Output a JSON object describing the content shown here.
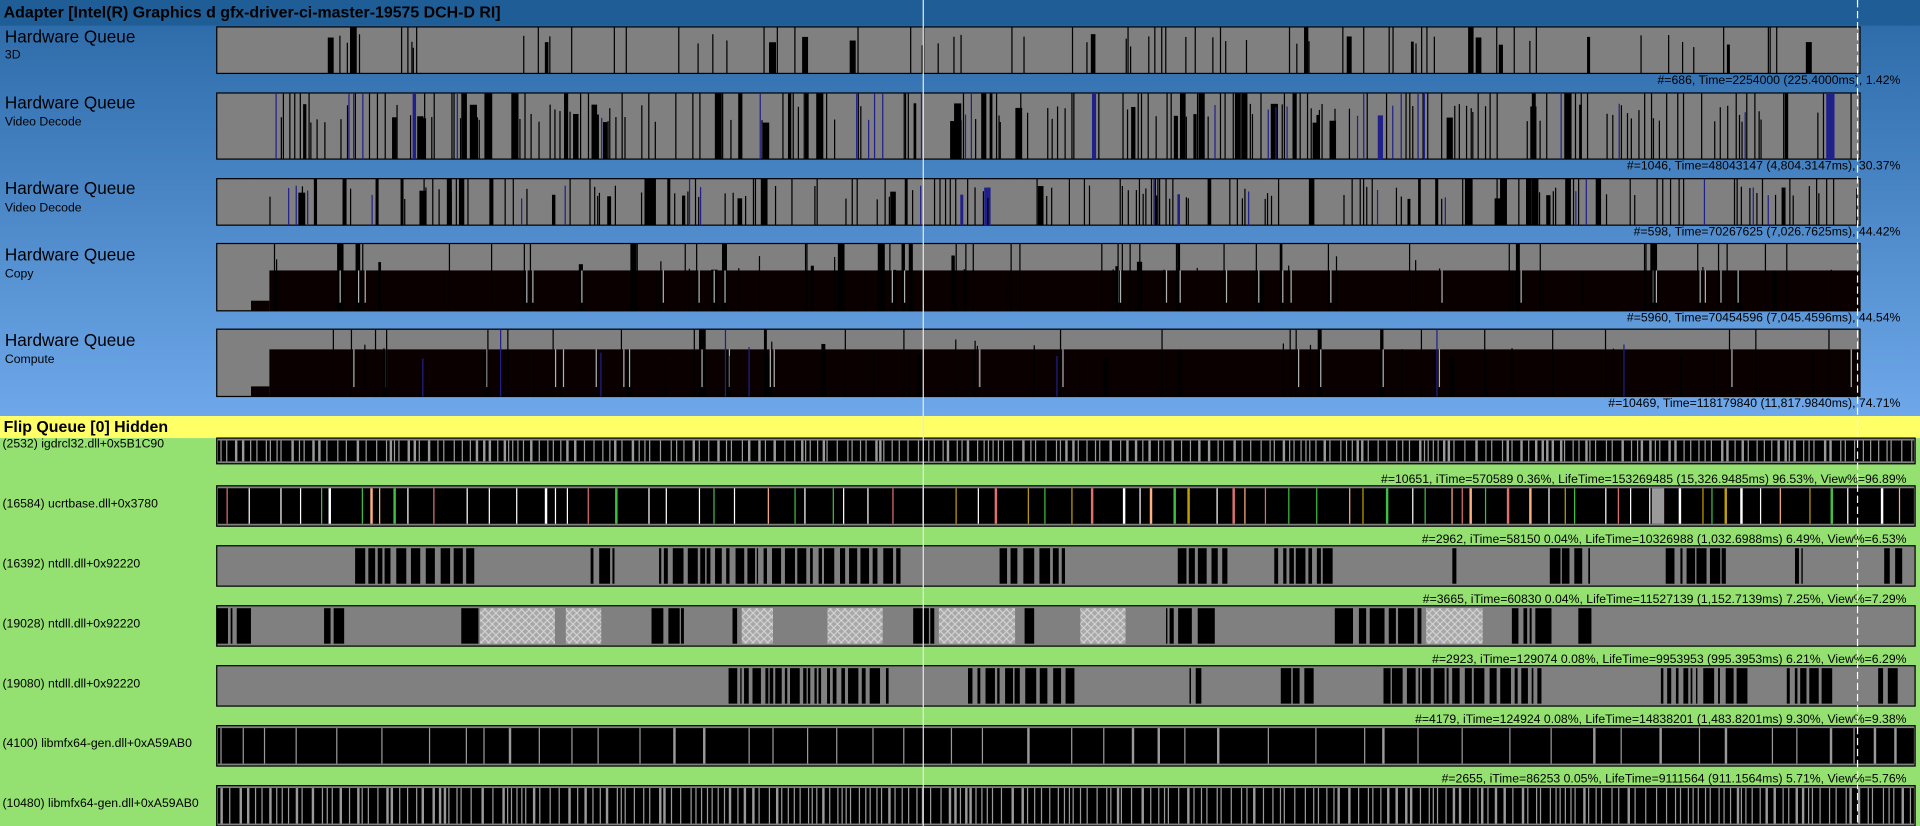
{
  "header": {
    "title": "Adapter [Intel(R) Graphics d gfx-driver-ci-master-19575 DCH-D RI]"
  },
  "hardware_queues": [
    {
      "label": "Hardware Queue",
      "sublabel": "3D",
      "stats": "#=686,  Time=2254000 (225.4000ms),  1.42%"
    },
    {
      "label": "Hardware Queue",
      "sublabel": "Video Decode",
      "stats": "#=1046,  Time=48043147 (4,804.3147ms),  30.37%"
    },
    {
      "label": "Hardware Queue",
      "sublabel": "Video Decode",
      "stats": "#=598,  Time=70267625 (7,026.7625ms),  44.42%"
    },
    {
      "label": "Hardware Queue",
      "sublabel": "Copy",
      "stats": "#=5960,  Time=70454596 (7,045.4596ms),  44.54%"
    },
    {
      "label": "Hardware Queue",
      "sublabel": "Compute",
      "stats": "#=10469,  Time=118179840 (11,817.9840ms),  74.71%"
    }
  ],
  "flip_queue": {
    "title": "Flip Queue [0] Hidden"
  },
  "threads": [
    {
      "label": "(2532) igdrcl32.dll+0x5B1C90",
      "stats": "#=10651,  iTime=570589  0.36%,  LifeTime=153269485 (15,326.9485ms)  96.53%,  View%=96.89%"
    },
    {
      "label": "(16584) ucrtbase.dll+0x3780",
      "stats": "#=2962,  iTime=58150  0.04%,  LifeTime=10326988 (1,032.6988ms)  6.49%,  View%=6.53%"
    },
    {
      "label": "(16392) ntdll.dll+0x92220",
      "stats": "#=3665,  iTime=60830  0.04%,  LifeTime=11527139 (1,152.7139ms)  7.25%,  View%=7.29%"
    },
    {
      "label": "(19028) ntdll.dll+0x92220",
      "stats": "#=2923,  iTime=129074  0.08%,  LifeTime=9953953 (995.3953ms)  6.21%,  View%=6.29%"
    },
    {
      "label": "(19080) ntdll.dll+0x92220",
      "stats": "#=4179,  iTime=124924  0.08%,  LifeTime=14838201 (1,483.8201ms)  9.30%,  View%=9.38%"
    },
    {
      "label": "(4100) libmfx64-gen.dll+0xA59AB0",
      "stats": "#=2655,  iTime=86253  0.05%,  LifeTime=9111564 (911.1564ms)  5.71%,  View%=5.76%"
    },
    {
      "label": "(10480) libmfx64-gen.dll+0xA59AB0"
    }
  ]
}
